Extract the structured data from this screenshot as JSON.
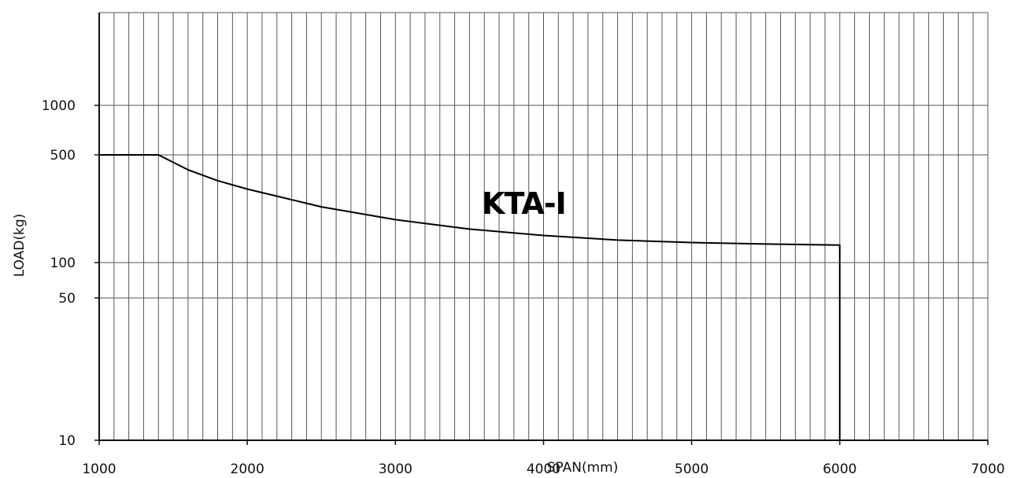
{
  "chart_data": {
    "type": "line",
    "xlabel": "SPAN(mm)",
    "ylabel": "LOAD(kg)",
    "xlim": [
      1000,
      7000
    ],
    "x_ticks": [
      "1000",
      "2000",
      "3000",
      "4000",
      "5000",
      "6000",
      "7000"
    ],
    "y_ticks": [
      "10",
      "50",
      "100",
      "500",
      "1000"
    ],
    "y_scale": "log (irregular tick spacing as shown)",
    "grid": true,
    "annotation": "KTA-I",
    "series": [
      {
        "x": [
          1000,
          1400,
          1600,
          1800,
          2000,
          2500,
          3000,
          3500,
          4000,
          4500,
          5000,
          5500,
          6000,
          6000
        ],
        "y": [
          500,
          500,
          400,
          340,
          300,
          230,
          190,
          165,
          150,
          140,
          135,
          132,
          130,
          10
        ]
      }
    ]
  }
}
